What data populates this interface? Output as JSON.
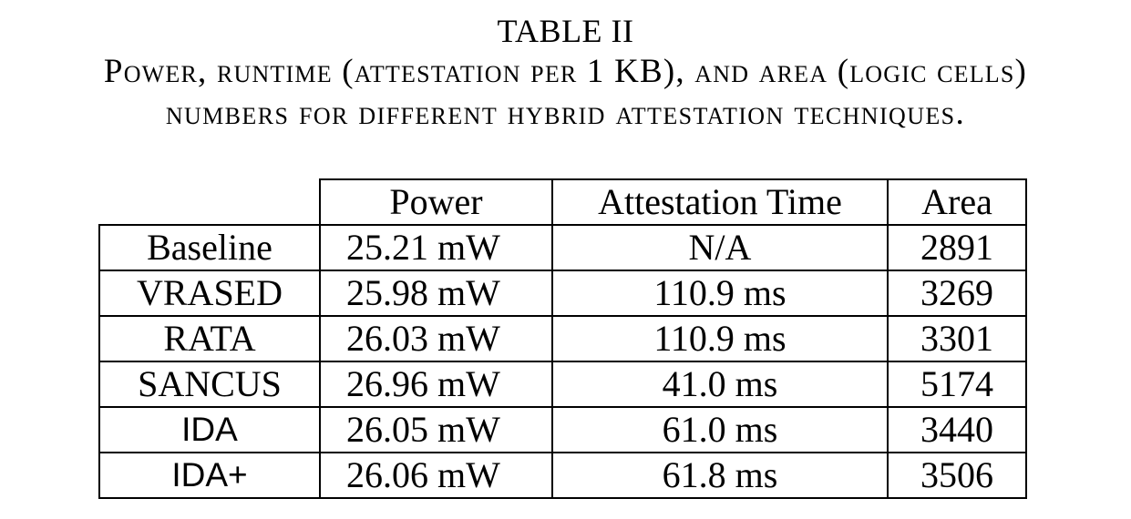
{
  "caption": {
    "label": "TABLE II",
    "line1": "Power, runtime (attestation per 1 KB), and area (logic cells)",
    "line2": "numbers for different hybrid attestation techniques."
  },
  "table": {
    "headers": [
      "Power",
      "Attestation Time",
      "Area"
    ],
    "rows": [
      {
        "technique": "Baseline",
        "power": "25.21 mW",
        "attestation_time": "N/A",
        "area": "2891"
      },
      {
        "technique": "VRASED",
        "power": "25.98 mW",
        "attestation_time": "110.9 ms",
        "area": "3269"
      },
      {
        "technique": "RATA",
        "power": "26.03 mW",
        "attestation_time": "110.9 ms",
        "area": "3301"
      },
      {
        "technique": "SANCUS",
        "power": "26.96 mW",
        "attestation_time": "41.0 ms",
        "area": "5174"
      },
      {
        "technique": "IDA",
        "power": "26.05 mW",
        "attestation_time": "61.0 ms",
        "area": "3440"
      },
      {
        "technique": "IDA+",
        "power": "26.06 mW",
        "attestation_time": "61.8 ms",
        "area": "3506"
      }
    ]
  }
}
